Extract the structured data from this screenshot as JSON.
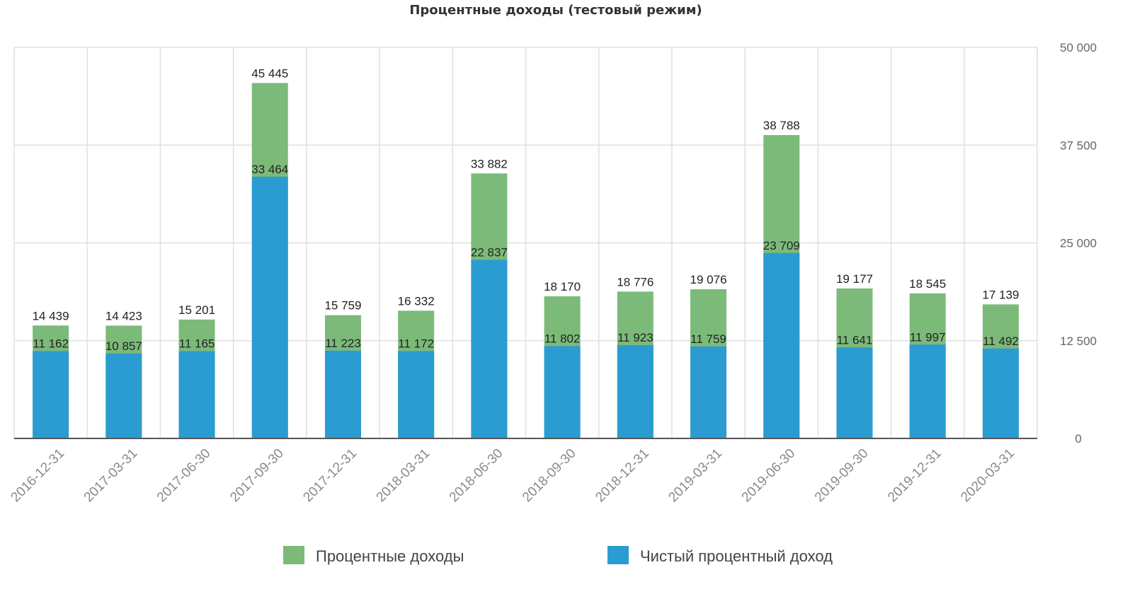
{
  "chart_data": {
    "type": "bar",
    "title": "Процентные доходы (тестовый режим)",
    "categories": [
      "2016-12-31",
      "2017-03-31",
      "2017-06-30",
      "2017-09-30",
      "2017-12-31",
      "2018-03-31",
      "2018-06-30",
      "2018-09-30",
      "2018-12-31",
      "2019-03-31",
      "2019-06-30",
      "2019-09-30",
      "2019-12-31",
      "2020-03-31"
    ],
    "series": [
      {
        "name": "Процентные доходы",
        "color": "#7cba7a",
        "values": [
          14439,
          14423,
          15201,
          45445,
          15759,
          16332,
          33882,
          18170,
          18776,
          19076,
          38788,
          19177,
          18545,
          17139
        ],
        "labels": [
          "14 439",
          "14 423",
          "15 201",
          "45 445",
          "15 759",
          "16 332",
          "33 882",
          "18 170",
          "18 776",
          "19 076",
          "38 788",
          "19 177",
          "18 545",
          "17 139"
        ]
      },
      {
        "name": "Чистый процентный доход",
        "color": "#2b9cd1",
        "values": [
          11162,
          10857,
          11165,
          33464,
          11223,
          11172,
          22837,
          11802,
          11923,
          11759,
          23709,
          11641,
          11997,
          11492
        ],
        "labels": [
          "11 162",
          "10 857",
          "11 165",
          "33 464",
          "11 223",
          "11 172",
          "22 837",
          "11 802",
          "11 923",
          "11 759",
          "23 709",
          "11 641",
          "11 997",
          "11 492"
        ]
      }
    ],
    "ylim": [
      0,
      50000
    ],
    "yticks": [
      0,
      12500,
      25000,
      37500,
      50000
    ],
    "ytick_labels": [
      "0",
      "12 500",
      "25 000",
      "37 500",
      "50 000"
    ],
    "y_axis_side": "right",
    "grid": true,
    "legend_position": "bottom",
    "xlabel": "",
    "ylabel": ""
  }
}
